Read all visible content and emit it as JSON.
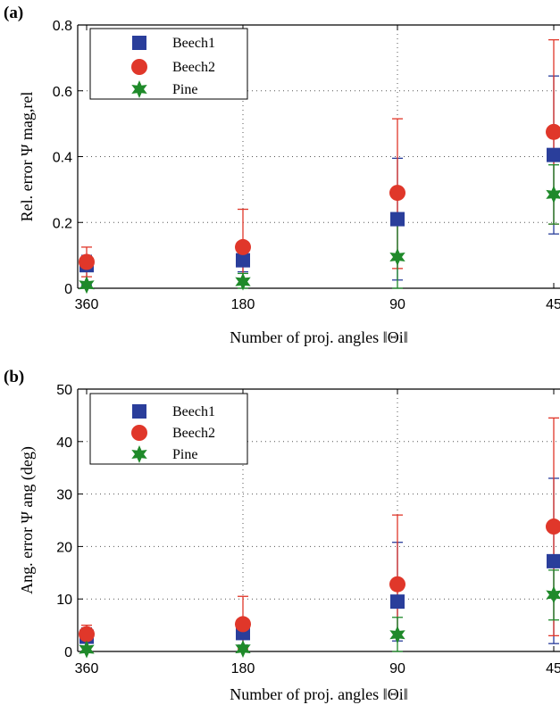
{
  "chart_data": [
    {
      "panel": "(a)",
      "type": "scatter",
      "error_bars": true,
      "categories": [
        "360",
        "180",
        "90",
        "45"
      ],
      "xlabel": "Number of proj. angles ‖Θi‖",
      "ylabel": "Rel. error Ψ mag,rel",
      "ylim": [
        0,
        0.8
      ],
      "yticks": [
        "0",
        "0.2",
        "0.4",
        "0.6",
        "0.8"
      ],
      "grid": "dotted horizontal",
      "legend": "top-left",
      "series": [
        {
          "name": "Beech1",
          "marker": "square",
          "color": "#2a3e9b",
          "values": [
            0.07,
            0.085,
            0.21,
            0.405
          ],
          "err_low": [
            0.01,
            0.05,
            0.025,
            0.165
          ],
          "err_high": [
            0.1,
            0.125,
            0.395,
            0.645
          ]
        },
        {
          "name": "Beech2",
          "marker": "circle",
          "color": "#e0372a",
          "values": [
            0.08,
            0.125,
            0.29,
            0.475
          ],
          "err_low": [
            0.035,
            0.01,
            0.06,
            0.195
          ],
          "err_high": [
            0.125,
            0.24,
            0.515,
            0.755
          ]
        },
        {
          "name": "Pine",
          "marker": "star",
          "color": "#1f8a2a",
          "values": [
            0.01,
            0.02,
            0.095,
            0.285
          ],
          "err_low": [
            0.0,
            0.0,
            0.0,
            0.195
          ],
          "err_high": [
            0.02,
            0.045,
            0.205,
            0.375
          ]
        }
      ]
    },
    {
      "panel": "(b)",
      "type": "scatter",
      "error_bars": true,
      "categories": [
        "360",
        "180",
        "90",
        "45"
      ],
      "xlabel": "Number of proj. angles ‖Θi‖",
      "ylabel": "Ang. error Ψ ang (deg)",
      "ylim": [
        0,
        50
      ],
      "yticks": [
        "0",
        "10",
        "20",
        "30",
        "40",
        "50"
      ],
      "grid": "dotted horizontal",
      "legend": "top-left",
      "series": [
        {
          "name": "Beech1",
          "marker": "square",
          "color": "#2a3e9b",
          "values": [
            2.8,
            3.5,
            9.5,
            17.2
          ],
          "err_low": [
            1.0,
            1.2,
            2.0,
            1.5
          ],
          "err_high": [
            4.5,
            6.0,
            20.8,
            33.0
          ]
        },
        {
          "name": "Beech2",
          "marker": "circle",
          "color": "#e0372a",
          "values": [
            3.3,
            5.2,
            12.8,
            23.8
          ],
          "err_low": [
            1.0,
            0.5,
            3.5,
            3.0
          ],
          "err_high": [
            5.0,
            10.5,
            26.0,
            44.5
          ]
        },
        {
          "name": "Pine",
          "marker": "star",
          "color": "#1f8a2a",
          "values": [
            0.4,
            0.5,
            3.2,
            10.8
          ],
          "err_low": [
            0.0,
            0.0,
            0.0,
            6.0
          ],
          "err_high": [
            1.0,
            1.2,
            6.5,
            15.5
          ]
        }
      ]
    }
  ]
}
